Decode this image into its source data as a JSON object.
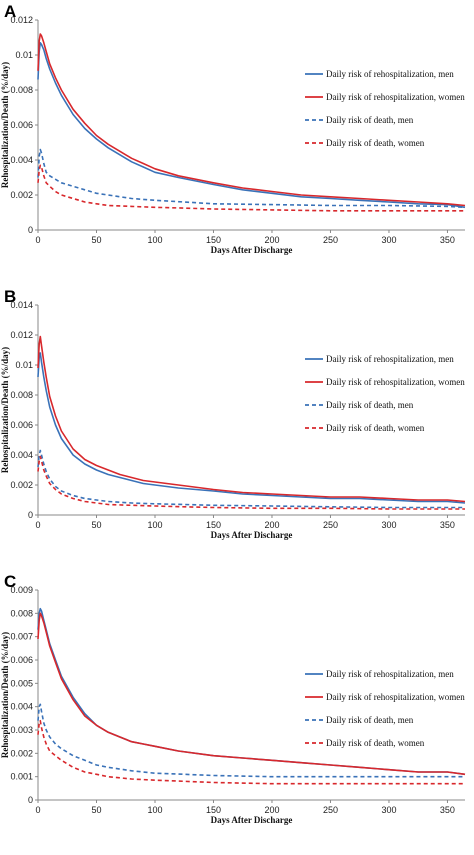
{
  "colors": {
    "men": "#3a72b8",
    "women": "#d8282c",
    "axis": "#888888"
  },
  "chart_data": [
    {
      "panel": "A",
      "type": "line",
      "xlabel": "Days After Discharge",
      "ylabel": "Rehospitalization/Death (%/day)",
      "xlim": [
        0,
        365
      ],
      "ylim": [
        0,
        0.012
      ],
      "xticks": [
        "0",
        "50",
        "100",
        "150",
        "200",
        "250",
        "300",
        "350"
      ],
      "yticks": [
        "0",
        "0.002",
        "0.004",
        "0.006",
        "0.008",
        "0.01",
        "0.012"
      ],
      "legend_position": "right",
      "series": [
        {
          "name": "Daily risk of rehospitalization, men",
          "color": "#3a72b8",
          "dash": "solid",
          "x": [
            0,
            1,
            2,
            3,
            5,
            7,
            10,
            15,
            20,
            30,
            40,
            50,
            60,
            70,
            80,
            90,
            100,
            120,
            150,
            175,
            200,
            225,
            250,
            275,
            300,
            325,
            350,
            365
          ],
          "y": [
            0.0086,
            0.0102,
            0.0107,
            0.0106,
            0.0103,
            0.0098,
            0.0092,
            0.0084,
            0.0077,
            0.0066,
            0.0058,
            0.0052,
            0.0047,
            0.0043,
            0.0039,
            0.0036,
            0.0033,
            0.003,
            0.0026,
            0.0023,
            0.0021,
            0.0019,
            0.0018,
            0.0017,
            0.0016,
            0.0015,
            0.00145,
            0.0013
          ]
        },
        {
          "name": "Daily risk of rehospitalization, women",
          "color": "#d8282c",
          "dash": "solid",
          "x": [
            0,
            1,
            2,
            3,
            5,
            7,
            10,
            15,
            20,
            30,
            40,
            50,
            60,
            70,
            80,
            90,
            100,
            120,
            150,
            175,
            200,
            225,
            250,
            275,
            300,
            325,
            350,
            365
          ],
          "y": [
            0.0091,
            0.0108,
            0.0112,
            0.0111,
            0.0107,
            0.0102,
            0.0095,
            0.0087,
            0.008,
            0.0069,
            0.0061,
            0.0054,
            0.0049,
            0.0045,
            0.0041,
            0.0038,
            0.0035,
            0.0031,
            0.0027,
            0.0024,
            0.0022,
            0.002,
            0.0019,
            0.0018,
            0.0017,
            0.0016,
            0.0015,
            0.0014
          ]
        },
        {
          "name": "Daily risk of death, men",
          "color": "#3a72b8",
          "dash": "dashed",
          "x": [
            0,
            1,
            2,
            3,
            5,
            7,
            10,
            15,
            20,
            30,
            40,
            50,
            60,
            80,
            100,
            125,
            150,
            200,
            250,
            300,
            350,
            365
          ],
          "y": [
            0.003,
            0.0042,
            0.0046,
            0.0044,
            0.0038,
            0.0033,
            0.0031,
            0.0029,
            0.0027,
            0.0025,
            0.0023,
            0.0021,
            0.002,
            0.0018,
            0.0017,
            0.0016,
            0.0015,
            0.00145,
            0.0014,
            0.0014,
            0.00135,
            0.0013
          ]
        },
        {
          "name": "Daily risk of death, women",
          "color": "#d8282c",
          "dash": "dashed",
          "x": [
            0,
            1,
            2,
            3,
            5,
            7,
            10,
            15,
            20,
            30,
            40,
            50,
            60,
            80,
            100,
            125,
            150,
            200,
            250,
            300,
            350,
            365
          ],
          "y": [
            0.0027,
            0.0034,
            0.0037,
            0.0036,
            0.0031,
            0.0027,
            0.0025,
            0.0022,
            0.002,
            0.0018,
            0.0016,
            0.0015,
            0.0014,
            0.00135,
            0.0013,
            0.00125,
            0.0012,
            0.00115,
            0.0011,
            0.0011,
            0.0011,
            0.0011
          ]
        }
      ]
    },
    {
      "panel": "B",
      "type": "line",
      "xlabel": "Days After Discharge",
      "ylabel": "Rehospitalization/Death (%/day)",
      "xlim": [
        0,
        365
      ],
      "ylim": [
        0,
        0.014
      ],
      "xticks": [
        "0",
        "50",
        "100",
        "150",
        "200",
        "250",
        "300",
        "350"
      ],
      "yticks": [
        "0",
        "0.002",
        "0.004",
        "0.006",
        "0.008",
        "0.01",
        "0.012",
        "0.014"
      ],
      "legend_position": "right",
      "series": [
        {
          "name": "Daily risk of rehospitalization, men",
          "color": "#3a72b8",
          "dash": "solid",
          "x": [
            0,
            1,
            2,
            3,
            5,
            7,
            10,
            15,
            20,
            30,
            40,
            50,
            60,
            70,
            80,
            90,
            100,
            120,
            150,
            175,
            200,
            225,
            250,
            275,
            300,
            325,
            350,
            365
          ],
          "y": [
            0.0092,
            0.0105,
            0.0108,
            0.0102,
            0.0092,
            0.0083,
            0.0072,
            0.006,
            0.0051,
            0.004,
            0.0034,
            0.003,
            0.0027,
            0.0025,
            0.0023,
            0.0021,
            0.002,
            0.0018,
            0.0016,
            0.0014,
            0.0013,
            0.0012,
            0.0011,
            0.0011,
            0.001,
            0.0009,
            0.0009,
            0.0008
          ]
        },
        {
          "name": "Daily risk of rehospitalization, women",
          "color": "#d8282c",
          "dash": "solid",
          "x": [
            0,
            1,
            2,
            3,
            5,
            7,
            10,
            15,
            20,
            30,
            40,
            50,
            60,
            70,
            80,
            90,
            100,
            120,
            150,
            175,
            200,
            225,
            250,
            275,
            300,
            325,
            350,
            365
          ],
          "y": [
            0.0098,
            0.0114,
            0.0119,
            0.0113,
            0.0102,
            0.0092,
            0.0079,
            0.0066,
            0.0056,
            0.0044,
            0.0037,
            0.0033,
            0.003,
            0.0027,
            0.0025,
            0.0023,
            0.0022,
            0.002,
            0.0017,
            0.0015,
            0.0014,
            0.0013,
            0.0012,
            0.0012,
            0.0011,
            0.001,
            0.001,
            0.0009
          ]
        },
        {
          "name": "Daily risk of death, men",
          "color": "#3a72b8",
          "dash": "dashed",
          "x": [
            0,
            1,
            2,
            3,
            5,
            7,
            10,
            15,
            20,
            30,
            40,
            50,
            60,
            80,
            100,
            125,
            150,
            200,
            250,
            300,
            350,
            365
          ],
          "y": [
            0.0032,
            0.004,
            0.0043,
            0.004,
            0.0034,
            0.0029,
            0.0024,
            0.0019,
            0.0016,
            0.0013,
            0.0011,
            0.001,
            0.0009,
            0.0008,
            0.00075,
            0.0007,
            0.00065,
            0.0006,
            0.00055,
            0.0005,
            0.0005,
            0.0005
          ]
        },
        {
          "name": "Daily risk of death, women",
          "color": "#d8282c",
          "dash": "dashed",
          "x": [
            0,
            1,
            2,
            3,
            5,
            7,
            10,
            15,
            20,
            30,
            40,
            50,
            60,
            80,
            100,
            125,
            150,
            200,
            250,
            300,
            350,
            365
          ],
          "y": [
            0.0029,
            0.0036,
            0.0039,
            0.0036,
            0.003,
            0.0026,
            0.0021,
            0.0017,
            0.0014,
            0.0011,
            0.0009,
            0.0008,
            0.0007,
            0.00065,
            0.0006,
            0.00055,
            0.0005,
            0.00045,
            0.00045,
            0.0004,
            0.0004,
            0.0004
          ]
        }
      ]
    },
    {
      "panel": "C",
      "type": "line",
      "xlabel": "Days After Discharge",
      "ylabel": "Rehospitalization/Death (%/day)",
      "xlim": [
        0,
        365
      ],
      "ylim": [
        0,
        0.009
      ],
      "xticks": [
        "0",
        "50",
        "100",
        "150",
        "200",
        "250",
        "300",
        "350"
      ],
      "yticks": [
        "0",
        "0.001",
        "0.002",
        "0.003",
        "0.004",
        "0.005",
        "0.006",
        "0.007",
        "0.008",
        "0.009"
      ],
      "legend_position": "right",
      "series": [
        {
          "name": "Daily risk of rehospitalization, men",
          "color": "#3a72b8",
          "dash": "solid",
          "x": [
            0,
            1,
            2,
            3,
            5,
            7,
            10,
            15,
            20,
            30,
            40,
            50,
            60,
            70,
            80,
            90,
            100,
            120,
            150,
            175,
            200,
            225,
            250,
            275,
            300,
            325,
            350,
            365
          ],
          "y": [
            0.0073,
            0.008,
            0.0082,
            0.0081,
            0.0077,
            0.0073,
            0.0067,
            0.006,
            0.0053,
            0.0044,
            0.0037,
            0.0032,
            0.0029,
            0.0027,
            0.0025,
            0.0024,
            0.0023,
            0.0021,
            0.0019,
            0.0018,
            0.0017,
            0.0016,
            0.0015,
            0.0014,
            0.0013,
            0.0012,
            0.0012,
            0.0011
          ]
        },
        {
          "name": "Daily risk of rehospitalization, women",
          "color": "#d8282c",
          "dash": "solid",
          "x": [
            0,
            1,
            2,
            3,
            5,
            7,
            10,
            15,
            20,
            30,
            40,
            50,
            60,
            70,
            80,
            90,
            100,
            120,
            150,
            175,
            200,
            225,
            250,
            275,
            300,
            325,
            350,
            365
          ],
          "y": [
            0.0069,
            0.0077,
            0.008,
            0.0079,
            0.0076,
            0.0072,
            0.0066,
            0.0059,
            0.0052,
            0.0043,
            0.0036,
            0.0032,
            0.0029,
            0.0027,
            0.0025,
            0.0024,
            0.0023,
            0.0021,
            0.0019,
            0.0018,
            0.0017,
            0.0016,
            0.0015,
            0.0014,
            0.0013,
            0.0012,
            0.0012,
            0.0011
          ]
        },
        {
          "name": "Daily risk of death, men",
          "color": "#3a72b8",
          "dash": "dashed",
          "x": [
            0,
            1,
            2,
            3,
            5,
            7,
            10,
            15,
            20,
            30,
            40,
            50,
            60,
            80,
            100,
            125,
            150,
            200,
            250,
            300,
            350,
            365
          ],
          "y": [
            0.0034,
            0.004,
            0.0041,
            0.0038,
            0.0033,
            0.003,
            0.0027,
            0.0024,
            0.0022,
            0.0019,
            0.0017,
            0.0015,
            0.0014,
            0.00125,
            0.00115,
            0.0011,
            0.00105,
            0.001,
            0.001,
            0.001,
            0.001,
            0.001
          ]
        },
        {
          "name": "Daily risk of death, women",
          "color": "#d8282c",
          "dash": "dashed",
          "x": [
            0,
            1,
            2,
            3,
            5,
            7,
            10,
            15,
            20,
            30,
            40,
            50,
            60,
            80,
            100,
            125,
            150,
            200,
            250,
            300,
            350,
            365
          ],
          "y": [
            0.0028,
            0.0033,
            0.0034,
            0.0031,
            0.0027,
            0.0024,
            0.0021,
            0.0019,
            0.0017,
            0.0014,
            0.0012,
            0.0011,
            0.001,
            0.0009,
            0.00085,
            0.0008,
            0.00075,
            0.0007,
            0.0007,
            0.0007,
            0.0007,
            0.0007
          ]
        }
      ]
    }
  ]
}
